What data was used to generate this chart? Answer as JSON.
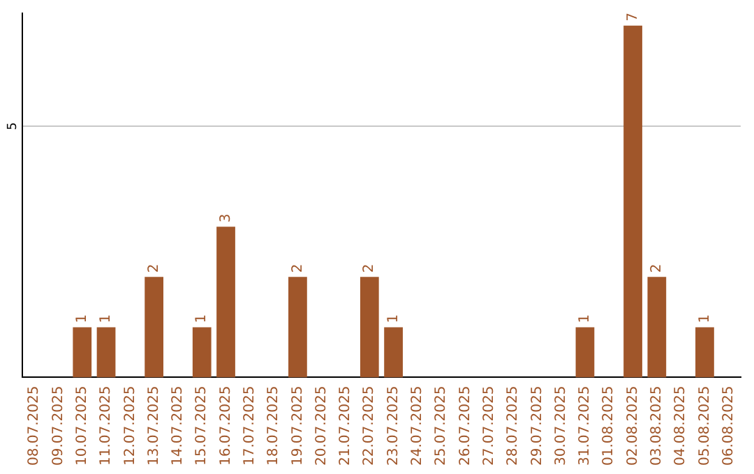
{
  "chart_data": {
    "type": "bar",
    "categories": [
      "08.07.2025",
      "09.07.2025",
      "10.07.2025",
      "11.07.2025",
      "12.07.2025",
      "13.07.2025",
      "14.07.2025",
      "15.07.2025",
      "16.07.2025",
      "17.07.2025",
      "18.07.2025",
      "19.07.2025",
      "20.07.2025",
      "21.07.2025",
      "22.07.2025",
      "23.07.2025",
      "24.07.2025",
      "25.07.2025",
      "26.07.2025",
      "27.07.2025",
      "28.07.2025",
      "29.07.2025",
      "30.07.2025",
      "31.07.2025",
      "01.08.2025",
      "02.08.2025",
      "03.08.2025",
      "04.08.2025",
      "05.08.2025",
      "06.08.2025"
    ],
    "values": [
      0,
      0,
      1,
      1,
      0,
      2,
      0,
      1,
      3,
      0,
      0,
      2,
      0,
      0,
      2,
      1,
      0,
      0,
      0,
      0,
      0,
      0,
      0,
      1,
      0,
      7,
      2,
      0,
      1,
      0
    ],
    "value_labels": [
      null,
      null,
      "1",
      "1",
      null,
      "2",
      null,
      "1",
      "3",
      null,
      null,
      "2",
      null,
      null,
      "2",
      "1",
      null,
      null,
      null,
      null,
      null,
      null,
      null,
      "1",
      null,
      "7",
      "2",
      null,
      "1",
      null
    ],
    "color": "#a0562a",
    "ylim": [
      0,
      7.25
    ],
    "yticks": [
      5
    ],
    "grid": "y",
    "legend": false
  }
}
